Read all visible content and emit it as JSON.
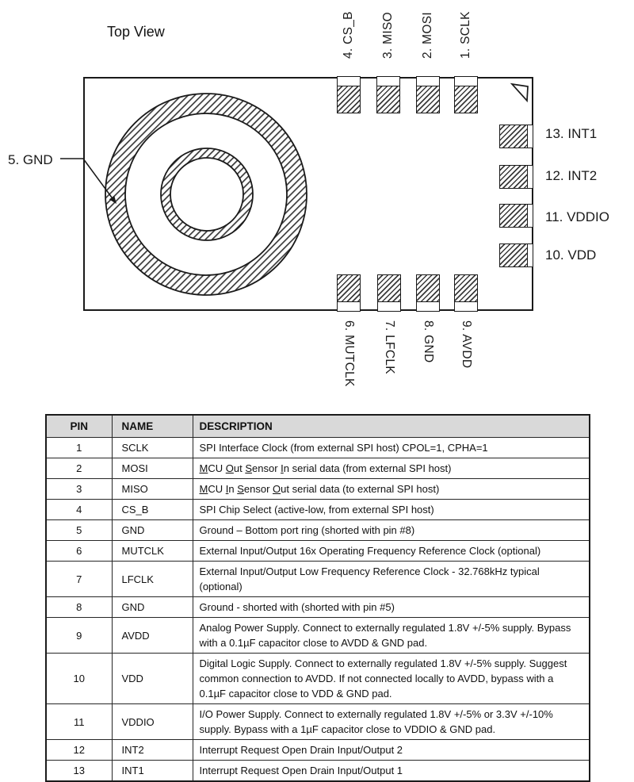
{
  "diagram": {
    "title": "Top View",
    "gnd_callout": "5. GND",
    "top_pins": [
      "4. CS_B",
      "3. MISO",
      "2. MOSI",
      "1. SCLK"
    ],
    "right_pins": [
      "13. INT1",
      "12. INT2",
      "11. VDDIO",
      "10. VDD"
    ],
    "bottom_pins": [
      "6. MUTCLK",
      "7. LFCLK",
      "8. GND",
      "9. AVDD"
    ]
  },
  "table": {
    "headers": [
      "PIN",
      "NAME",
      "DESCRIPTION"
    ],
    "rows": [
      {
        "pin": "1",
        "name": "SCLK",
        "desc": [
          {
            "t": "SPI Interface Clock (from external SPI host) CPOL=1, CPHA=1"
          }
        ]
      },
      {
        "pin": "2",
        "name": "MOSI",
        "desc": [
          {
            "t": "M",
            "u": true
          },
          {
            "t": "CU "
          },
          {
            "t": "O",
            "u": true
          },
          {
            "t": "ut "
          },
          {
            "t": "S",
            "u": true
          },
          {
            "t": "ensor "
          },
          {
            "t": "I",
            "u": true
          },
          {
            "t": "n serial data (from external SPI host)"
          }
        ]
      },
      {
        "pin": "3",
        "name": "MISO",
        "desc": [
          {
            "t": "M",
            "u": true
          },
          {
            "t": "CU "
          },
          {
            "t": "I",
            "u": true
          },
          {
            "t": "n "
          },
          {
            "t": "S",
            "u": true
          },
          {
            "t": "ensor "
          },
          {
            "t": "O",
            "u": true
          },
          {
            "t": "ut serial data (to external SPI host)"
          }
        ]
      },
      {
        "pin": "4",
        "name": "CS_B",
        "desc": [
          {
            "t": "SPI Chip Select (active-low, from external SPI host)"
          }
        ]
      },
      {
        "pin": "5",
        "name": "GND",
        "desc": [
          {
            "t": "Ground – Bottom port ring (shorted with pin #8)"
          }
        ]
      },
      {
        "pin": "6",
        "name": "MUTCLK",
        "desc": [
          {
            "t": "External Input/Output 16x Operating Frequency Reference Clock (optional)"
          }
        ]
      },
      {
        "pin": "7",
        "name": "LFCLK",
        "desc": [
          {
            "t": "External Input/Output Low Frequency Reference Clock - 32.768kHz typical (optional)"
          }
        ]
      },
      {
        "pin": "8",
        "name": "GND",
        "desc": [
          {
            "t": "Ground - shorted with (shorted with pin #5)"
          }
        ]
      },
      {
        "pin": "9",
        "name": "AVDD",
        "desc": [
          {
            "t": "Analog Power Supply. Connect to externally regulated 1.8V +/-5% supply. Bypass with a 0.1µF capacitor close to AVDD & GND pad."
          }
        ]
      },
      {
        "pin": "10",
        "name": "VDD",
        "desc": [
          {
            "t": "Digital Logic Supply. Connect to externally regulated 1.8V +/-5% supply. Suggest common connection to AVDD. If not connected locally to AVDD, bypass with a 0.1µF capacitor close to VDD & GND pad."
          }
        ]
      },
      {
        "pin": "11",
        "name": "VDDIO",
        "desc": [
          {
            "t": "I/O Power Supply. Connect to externally regulated 1.8V +/-5% or 3.3V +/-10% supply. Bypass with a 1µF capacitor close to VDDIO & GND pad."
          }
        ]
      },
      {
        "pin": "12",
        "name": "INT2",
        "desc": [
          {
            "t": "Interrupt Request Open Drain Input/Output 2"
          }
        ]
      },
      {
        "pin": "13",
        "name": "INT1",
        "desc": [
          {
            "t": "Interrupt Request Open Drain Input/Output 1"
          }
        ]
      }
    ]
  },
  "colors": {
    "ink": "#1a1a1a",
    "header_bg": "#d9d9d9",
    "hatch": "#3a3a3a"
  }
}
